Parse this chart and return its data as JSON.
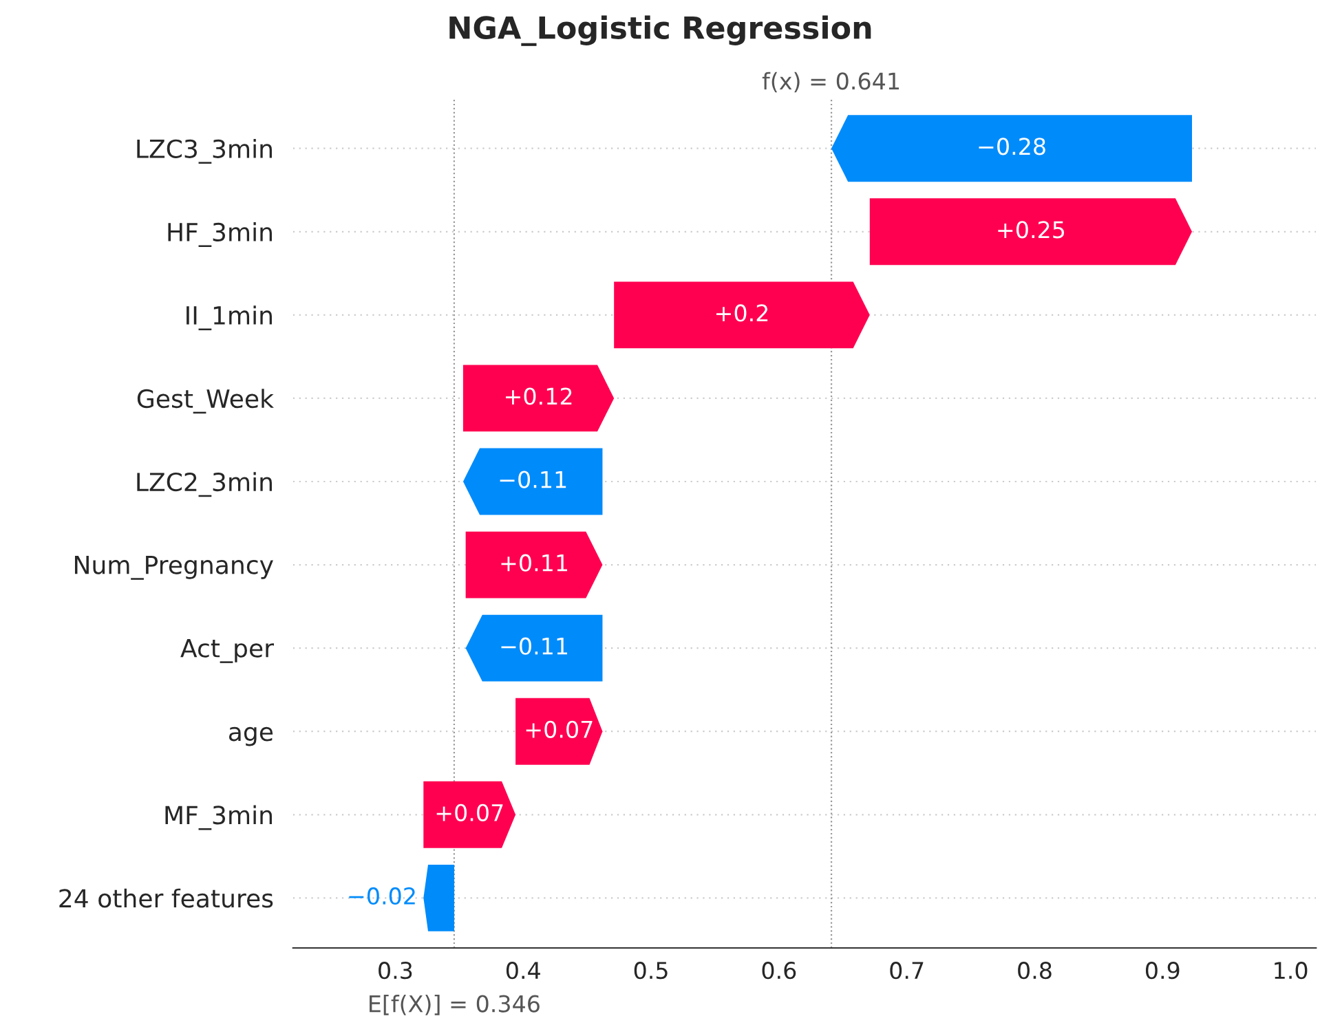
{
  "chart_data": {
    "type": "bar",
    "orientation": "horizontal",
    "title": "NGA_Logistic Regression",
    "categories": [
      "LZC3_3min",
      "HF_3min",
      "II_1min",
      "Gest_Week",
      "LZC2_3min",
      "Num_Pregnancy",
      "Act_per",
      "age",
      "MF_3min",
      "24 other features"
    ],
    "values": [
      -0.282,
      0.252,
      0.2,
      0.118,
      -0.109,
      0.107,
      -0.107,
      0.068,
      0.072,
      -0.024
    ],
    "base": [
      0.923,
      0.671,
      0.471,
      0.353,
      0.462,
      0.355,
      0.462,
      0.394,
      0.322,
      0.346
    ],
    "value_labels": [
      "−0.28",
      "+0.25",
      "+0.2",
      "+0.12",
      "−0.11",
      "+0.11",
      "−0.11",
      "+0.07",
      "+0.07",
      "−0.02"
    ],
    "colors": [
      "#008bfb",
      "#ff0051",
      "#ff0051",
      "#ff0051",
      "#008bfb",
      "#ff0051",
      "#008bfb",
      "#ff0051",
      "#ff0051",
      "#008bfb"
    ],
    "xlim": [
      0.22,
      1.02
    ],
    "xticks": [
      0.3,
      0.4,
      0.5,
      0.6,
      0.7,
      0.8,
      0.9,
      {
        "value": 1.0,
        "label": "1.0"
      }
    ],
    "grid": "y",
    "ref_lines": [
      {
        "axis": "x",
        "value": 0.641,
        "label": "f(x) = 0.641",
        "line_style": "dotted",
        "color": "#999999"
      },
      {
        "axis": "x",
        "value": 0.346,
        "label": "E[f(X)] = 0.346",
        "line_style": "dotted",
        "color": "#999999"
      }
    ]
  }
}
